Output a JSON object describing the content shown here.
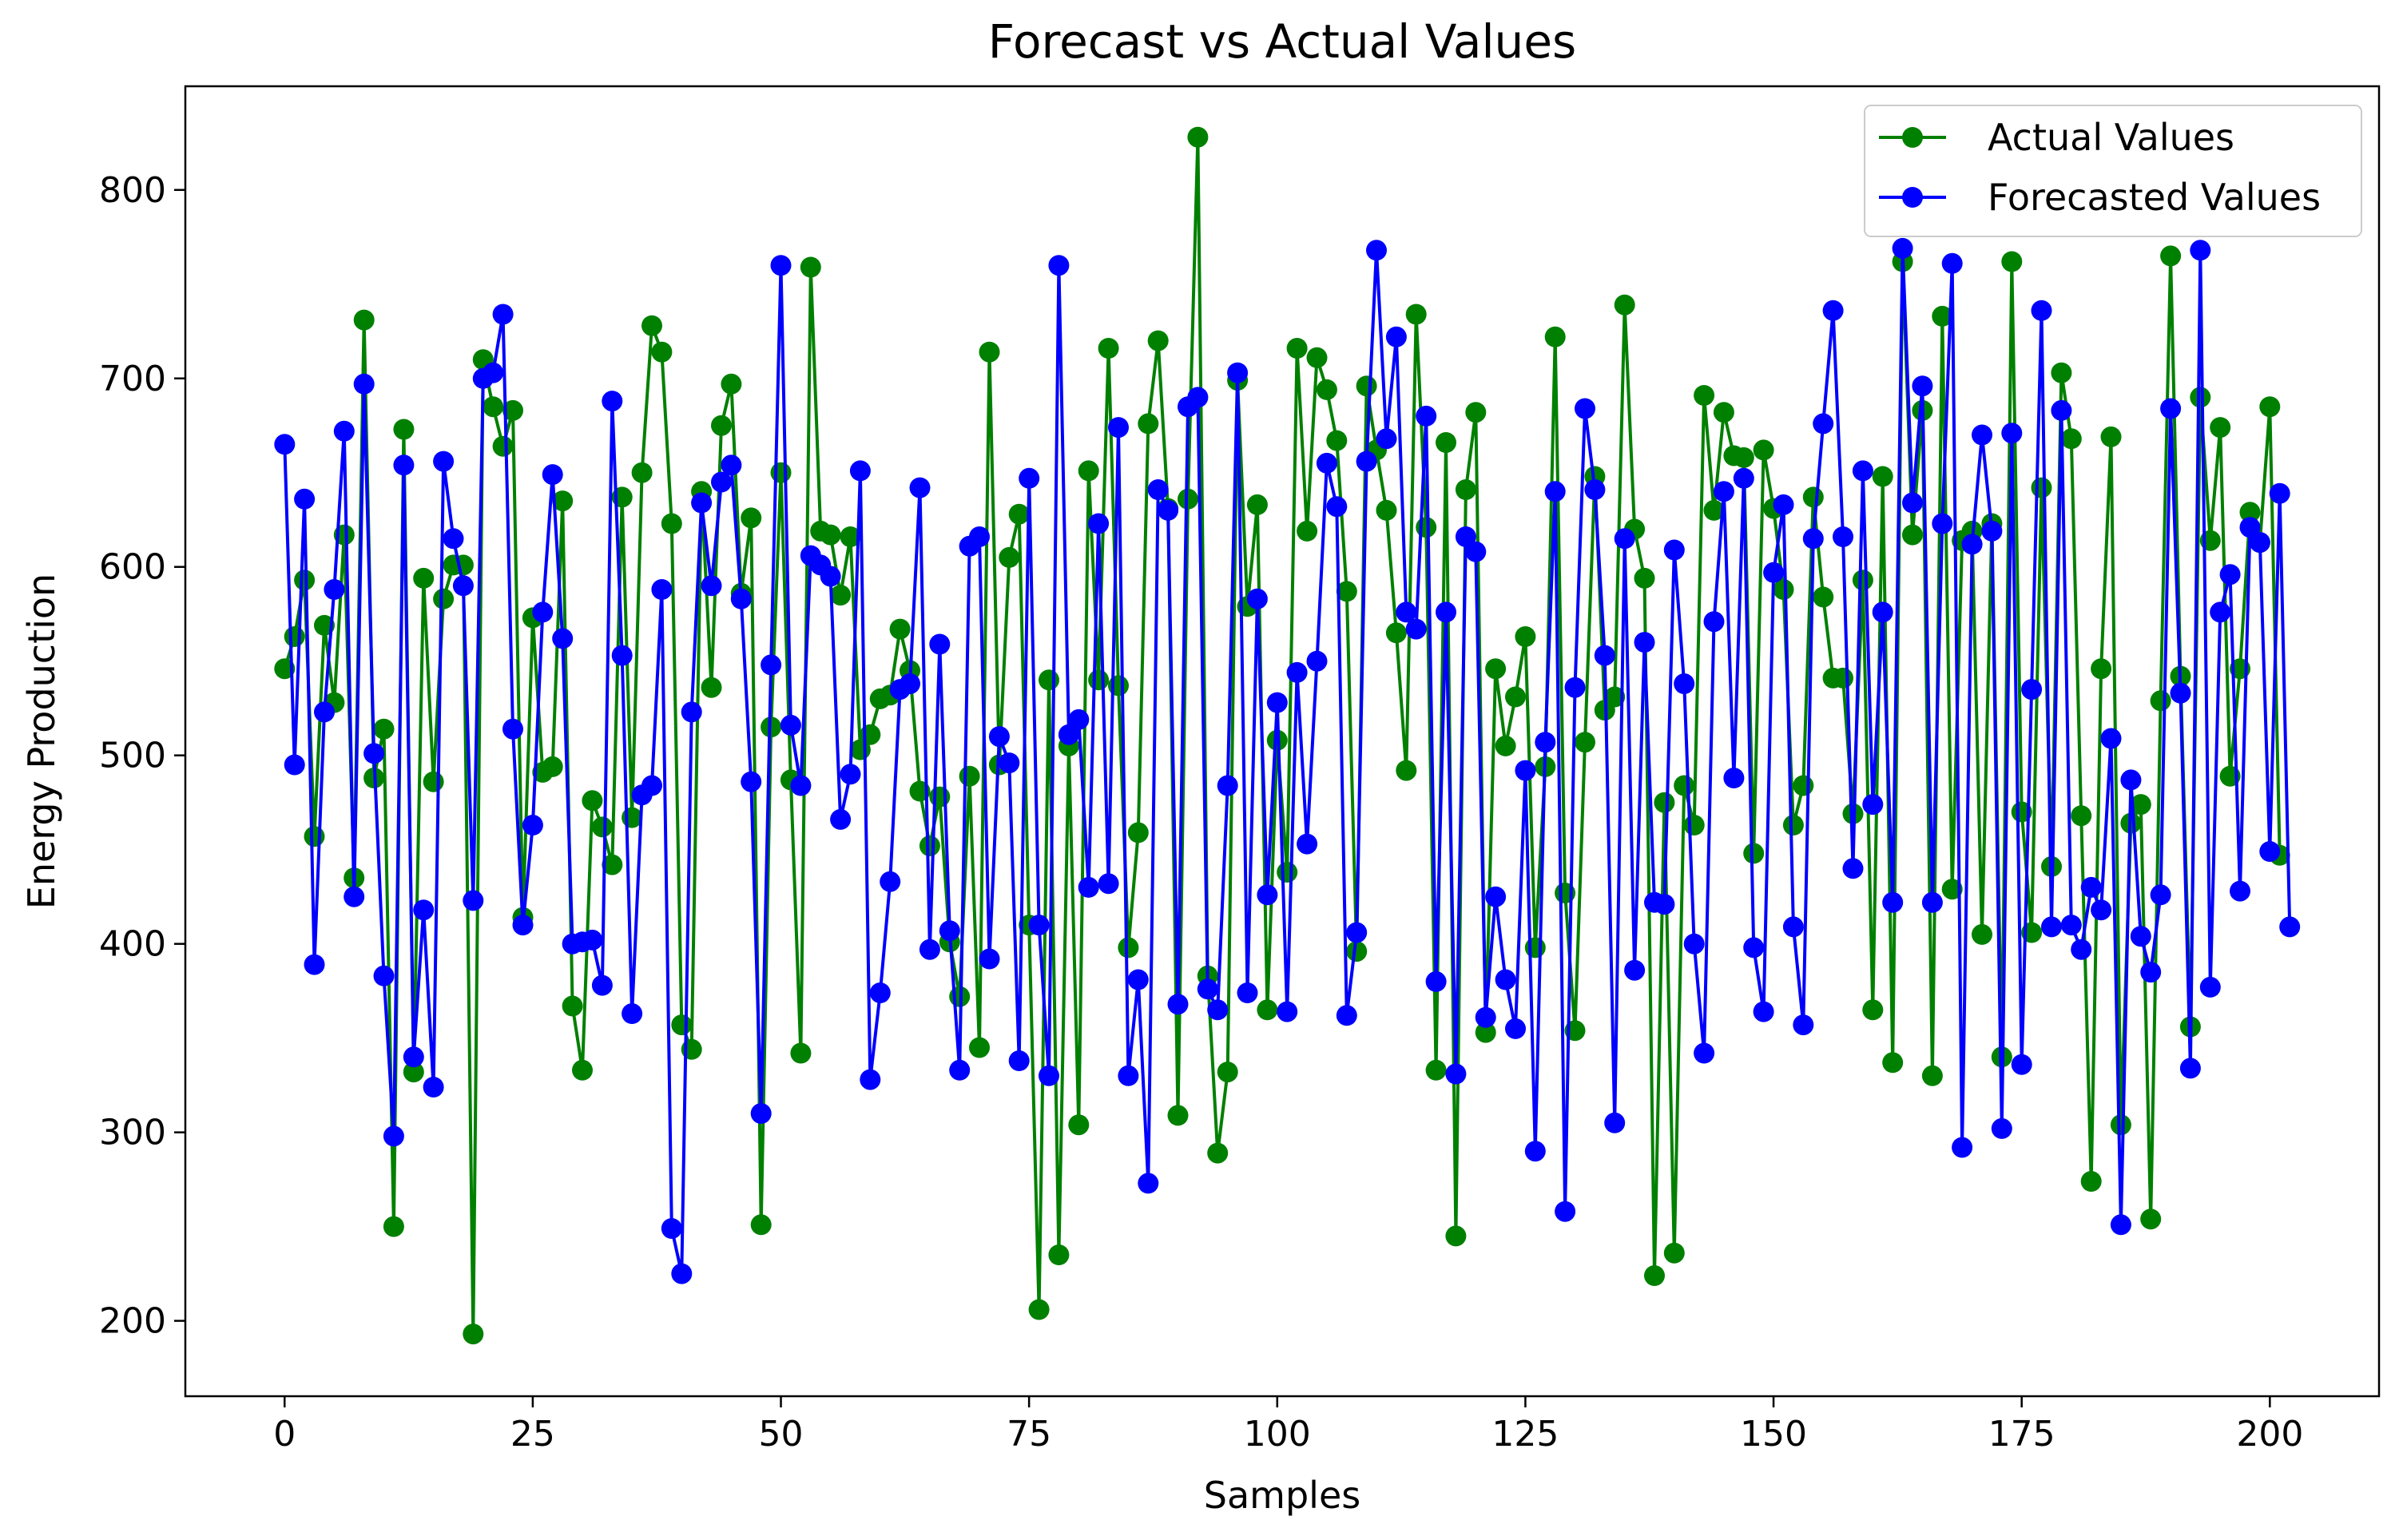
{
  "chart_data": {
    "type": "line",
    "title": "Forecast vs Actual Values",
    "xlabel": "Samples",
    "ylabel": "Energy Production",
    "xlim": [
      -10,
      211
    ],
    "ylim": [
      160,
      855
    ],
    "xticks": [
      0,
      25,
      50,
      75,
      100,
      125,
      150,
      175,
      200
    ],
    "yticks": [
      200,
      300,
      400,
      500,
      600,
      700,
      800
    ],
    "legend_position": "top-right",
    "series": [
      {
        "name": "Actual Values",
        "color": "#008000",
        "values": [
          546,
          563,
          593,
          457,
          569,
          528,
          617,
          435,
          731,
          488,
          514,
          250,
          673,
          332,
          594,
          486,
          583,
          601,
          601,
          193,
          710,
          685,
          664,
          683,
          414,
          573,
          491,
          494,
          635,
          367,
          333,
          476,
          462,
          442,
          637,
          467,
          650,
          728,
          714,
          623,
          357,
          344,
          640,
          536,
          675,
          697,
          586,
          626,
          251,
          515,
          650,
          487,
          342,
          759,
          619,
          617,
          585,
          616,
          503,
          511,
          530,
          532,
          567,
          545,
          481,
          452,
          478,
          401,
          372,
          489,
          345,
          714,
          495,
          605,
          628,
          410,
          206,
          540,
          235,
          505,
          304,
          651,
          540,
          716,
          537,
          398,
          459,
          676,
          720,
          631,
          309,
          636,
          828,
          383,
          289,
          332,
          699,
          579,
          633,
          365,
          508,
          438,
          716,
          619,
          711,
          694,
          667,
          587,
          396,
          696,
          662,
          630,
          565,
          492,
          734,
          621,
          333,
          666,
          245,
          641,
          682,
          353,
          546,
          505,
          531,
          563,
          398,
          494,
          722,
          427,
          354,
          507,
          648,
          524,
          531,
          739,
          620,
          594,
          224,
          475,
          236,
          484,
          463,
          691,
          630,
          682,
          659,
          658,
          448,
          662,
          631,
          588,
          463,
          484,
          637,
          584,
          541,
          541,
          469,
          593,
          365,
          648,
          337,
          762,
          617,
          683,
          330,
          733,
          429,
          614,
          619,
          405,
          623,
          340,
          762,
          470,
          406,
          642,
          441,
          703,
          668,
          468,
          274,
          546,
          669,
          304,
          464,
          474,
          254,
          529,
          765,
          542,
          356,
          690,
          614,
          674,
          489,
          546,
          629,
          613,
          685,
          447
        ]
      },
      {
        "name": "Forecasted Values",
        "color": "#0000ff",
        "values": [
          665,
          495,
          636,
          389,
          523,
          588,
          672,
          425,
          697,
          501,
          383,
          298,
          654,
          340,
          418,
          324,
          656,
          615,
          590,
          423,
          700,
          703,
          734,
          514,
          410,
          463,
          576,
          649,
          562,
          400,
          401,
          402,
          378,
          688,
          553,
          363,
          479,
          484,
          588,
          249,
          225,
          523,
          634,
          590,
          645,
          654,
          583,
          486,
          310,
          548,
          760,
          516,
          484,
          606,
          601,
          595,
          466,
          490,
          651,
          328,
          374,
          433,
          535,
          538,
          642,
          397,
          559,
          407,
          333,
          611,
          616,
          392,
          510,
          496,
          338,
          647,
          410,
          330,
          760,
          511,
          519,
          430,
          623,
          432,
          674,
          330,
          381,
          273,
          641,
          630,
          368,
          685,
          690,
          376,
          365,
          484,
          703,
          374,
          583,
          426,
          528,
          364,
          544,
          453,
          550,
          655,
          632,
          362,
          406,
          656,
          768,
          668,
          722,
          576,
          567,
          680,
          380,
          576,
          331,
          616,
          608,
          361,
          425,
          381,
          355,
          492,
          290,
          507,
          640,
          258,
          536,
          684,
          641,
          553,
          305,
          615,
          386,
          560,
          422,
          421,
          609,
          538,
          400,
          342,
          571,
          640,
          488,
          647,
          398,
          364,
          597,
          633,
          409,
          357,
          615,
          676,
          736,
          616,
          440,
          651,
          474,
          576,
          422,
          769,
          634,
          696,
          422,
          623,
          761,
          292,
          612,
          670,
          619,
          302,
          671,
          336,
          535,
          736,
          409,
          683,
          410,
          397,
          430,
          418,
          509,
          251,
          487,
          404,
          385,
          426,
          684,
          533,
          334,
          768,
          377,
          576,
          596,
          428,
          621,
          613,
          449,
          639,
          409
        ]
      }
    ]
  }
}
